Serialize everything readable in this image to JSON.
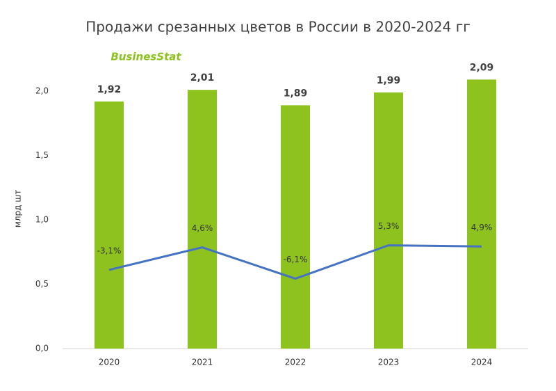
{
  "chart_data": {
    "type": "bar-line",
    "title": "Продажи срезанных цветов в России в 2020-2024 гг",
    "watermark": "BusinesStat",
    "y_label": "млрд шт",
    "categories": [
      "2020",
      "2021",
      "2022",
      "2023",
      "2024"
    ],
    "series": [
      {
        "type": "bar",
        "color": "#8dc21f",
        "values": [
          1.92,
          2.01,
          1.89,
          1.99,
          2.09
        ],
        "value_labels": [
          "1,92",
          "2,01",
          "1,89",
          "1,99",
          "2,09"
        ]
      },
      {
        "type": "line",
        "axis": "y2",
        "color": "#4472c4",
        "values": [
          -3.1,
          4.6,
          -6.1,
          5.3,
          4.9
        ],
        "value_labels": [
          "-3,1%",
          "4,6%",
          "-6,1%",
          "5,3%",
          "4,9%"
        ]
      }
    ],
    "ylim": [
      0,
      2.5
    ],
    "yticks": [
      {
        "value": 0,
        "label": "0,0"
      },
      {
        "value": 0.5,
        "label": "0,5"
      },
      {
        "value": 1,
        "label": "1,0"
      },
      {
        "value": 1.5,
        "label": "1,5"
      },
      {
        "value": 2,
        "label": "2,0"
      }
    ],
    "y2lim": [
      -30,
      80
    ],
    "grid": false
  }
}
